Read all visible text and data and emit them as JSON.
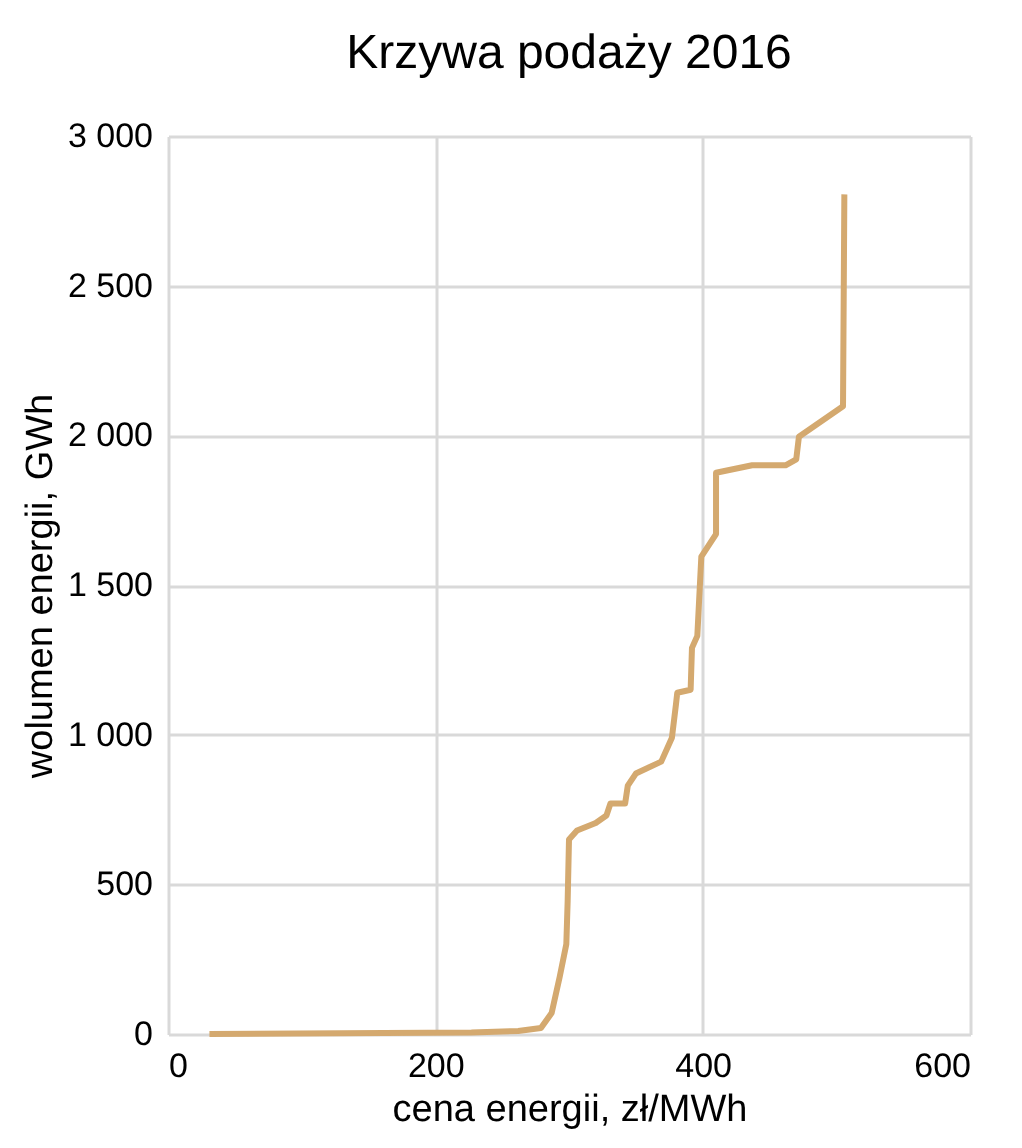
{
  "chart_data": {
    "type": "line",
    "title": "Krzywa podaży 2016",
    "xlabel": "cena energii, zł/MWh",
    "ylabel": "wolumen energii, GWh",
    "x": [
      31,
      227,
      262,
      279,
      287,
      293,
      298,
      299,
      300,
      306,
      320,
      328,
      331,
      342,
      344,
      350,
      369,
      377,
      380,
      381,
      391,
      392,
      396,
      399,
      410,
      410,
      437,
      462,
      470,
      472,
      505,
      506
    ],
    "series": [
      {
        "color": "#d4a96f",
        "values": [
          0,
          5,
          10,
          20,
          70,
          190,
          300,
          445,
          650,
          680,
          705,
          730,
          770,
          770,
          830,
          870,
          910,
          990,
          1100,
          1140,
          1150,
          1290,
          1330,
          1595,
          1670,
          1875,
          1900,
          1900,
          1920,
          1995,
          2097,
          2805
        ]
      }
    ],
    "xlim": [
      0,
      600
    ],
    "xticks": [
      0,
      200,
      400,
      600
    ],
    "ylim": [
      0,
      3000
    ],
    "yticks": [
      0,
      {
        "value": 500,
        "label": "500"
      },
      {
        "value": 1000,
        "label": "1 000"
      },
      {
        "value": 1500,
        "label": "1 500"
      },
      {
        "value": 2000,
        "label": "2 000"
      },
      {
        "value": 2500,
        "label": "2 500"
      },
      {
        "value": 3000,
        "label": "3 000"
      }
    ],
    "grid": true,
    "marker": "none",
    "line_style": "solid"
  }
}
